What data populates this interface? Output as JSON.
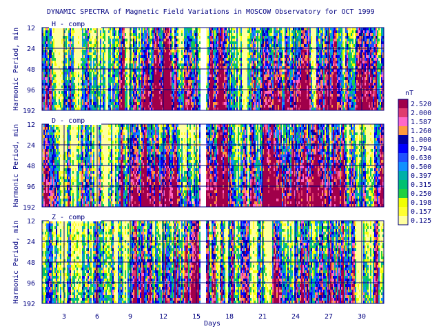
{
  "chart_data": {
    "type": "heatmap",
    "title": "DYNAMIC SPECTRA of Magnetic Field Variations in MOSCOW Observatory for OCT 1999",
    "xlabel": "Days",
    "ylabel": "Harmonic Period, min",
    "x_ticks": [
      "3",
      "6",
      "9",
      "12",
      "15",
      "18",
      "21",
      "24",
      "27",
      "30"
    ],
    "x_tick_values": [
      3,
      6,
      9,
      12,
      15,
      18,
      21,
      24,
      27,
      30
    ],
    "xlim": [
      1,
      32
    ],
    "y_ticks": [
      "12",
      "24",
      "48",
      "96",
      "192"
    ],
    "y_tick_values": [
      12,
      24,
      48,
      96,
      192
    ],
    "ylim": [
      12,
      192
    ],
    "y_scale": "log",
    "data_gap_day": 15.6,
    "colorbar": {
      "unit": "nT",
      "levels": [
        "2.520",
        "2.000",
        "1.587",
        "1.260",
        "1.000",
        "0.794",
        "0.630",
        "0.500",
        "0.397",
        "0.315",
        "0.250",
        "0.198",
        "0.157",
        "0.125"
      ],
      "colors": [
        "#a0004a",
        "#e03c6e",
        "#ff68c8",
        "#ff9a3c",
        "#0000a8",
        "#0000ff",
        "#2050ff",
        "#1090ff",
        "#00b0a8",
        "#00c070",
        "#20d040",
        "#f0ff00",
        "#ffff30",
        "#ffffa0"
      ]
    },
    "panels": [
      {
        "label": "H - comp",
        "activity_by_day": [
          0.45,
          0.5,
          0.45,
          0.35,
          0.4,
          0.35,
          0.3,
          0.35,
          0.4,
          0.65,
          0.85,
          0.9,
          0.85,
          0.7,
          0.55,
          0.65,
          0.6,
          0.35,
          0.2,
          0.25,
          0.5,
          0.9,
          0.92,
          0.85,
          0.75,
          0.75,
          0.7,
          0.6,
          0.5,
          0.55,
          0.45
        ]
      },
      {
        "label": "D - comp",
        "activity_by_day": [
          0.45,
          0.5,
          0.45,
          0.35,
          0.35,
          0.3,
          0.3,
          0.35,
          0.5,
          0.8,
          0.9,
          0.9,
          0.9,
          0.7,
          0.6,
          0.75,
          0.75,
          0.5,
          0.35,
          0.35,
          0.6,
          0.9,
          0.92,
          0.85,
          0.75,
          0.7,
          0.75,
          0.8,
          0.65,
          0.55,
          0.45
        ]
      },
      {
        "label": "Z - comp",
        "activity_by_day": [
          0.2,
          0.25,
          0.25,
          0.2,
          0.2,
          0.15,
          0.15,
          0.2,
          0.3,
          0.5,
          0.55,
          0.6,
          0.55,
          0.45,
          0.4,
          0.45,
          0.4,
          0.2,
          0.15,
          0.15,
          0.35,
          0.7,
          0.7,
          0.6,
          0.5,
          0.5,
          0.5,
          0.5,
          0.4,
          0.35,
          0.3
        ]
      }
    ]
  }
}
